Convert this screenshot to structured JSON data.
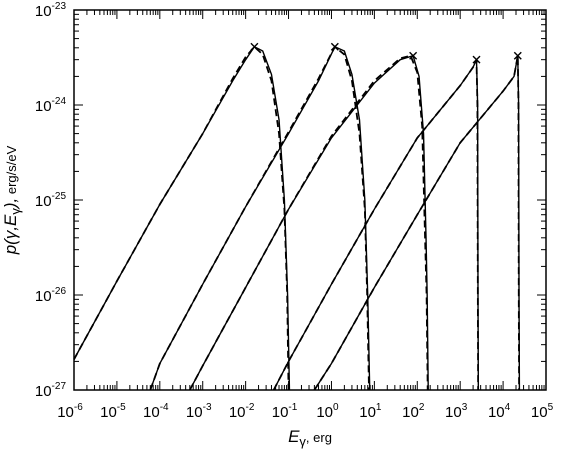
{
  "chart_data": {
    "type": "line",
    "x_scale": "log",
    "y_scale": "log",
    "xlim": [
      1e-06,
      100000.0
    ],
    "ylim": [
      1e-27,
      1e-23
    ],
    "grid": false,
    "legend": "none",
    "xlabel": {
      "symbol": "E",
      "subscript": "γ",
      "unit": ", erg"
    },
    "ylabel": {
      "prefix": "p(γ,",
      "symbol": "E",
      "subscript": "γ",
      "suffix": "),",
      "unit": " erg/s/eV"
    },
    "x_ticks": [
      {
        "base": "10",
        "exp": "-6",
        "value": 1e-06
      },
      {
        "base": "10",
        "exp": "-5",
        "value": 1e-05
      },
      {
        "base": "10",
        "exp": "-4",
        "value": 0.0001
      },
      {
        "base": "10",
        "exp": "-3",
        "value": 0.001
      },
      {
        "base": "10",
        "exp": "-2",
        "value": 0.01
      },
      {
        "base": "10",
        "exp": "-1",
        "value": 0.1
      },
      {
        "base": "10",
        "exp": "0",
        "value": 1
      },
      {
        "base": "10",
        "exp": "1",
        "value": 10
      },
      {
        "base": "10",
        "exp": "2",
        "value": 100
      },
      {
        "base": "10",
        "exp": "3",
        "value": 1000
      },
      {
        "base": "10",
        "exp": "4",
        "value": 10000
      },
      {
        "base": "10",
        "exp": "5",
        "value": 100000
      }
    ],
    "y_ticks": [
      {
        "base": "10",
        "exp": "-27",
        "value": 1e-27
      },
      {
        "base": "10",
        "exp": "-26",
        "value": 1e-26
      },
      {
        "base": "10",
        "exp": "-25",
        "value": 1e-25
      },
      {
        "base": "10",
        "exp": "-24",
        "value": 1e-24
      },
      {
        "base": "10",
        "exp": "-23",
        "value": 1e-23
      }
    ],
    "series": [
      {
        "solid": [
          [
            1e-06,
            2.1e-27
          ],
          [
            1e-05,
            1.4e-26
          ],
          [
            0.0001,
            9e-26
          ],
          [
            0.001,
            5e-25
          ],
          [
            0.005,
            1.8e-24
          ],
          [
            0.01,
            3e-24
          ],
          [
            0.016,
            4.1e-24
          ],
          [
            0.025,
            3.7e-24
          ],
          [
            0.04,
            2.1e-24
          ],
          [
            0.06,
            7e-25
          ],
          [
            0.08,
            1e-25
          ],
          [
            0.095,
            1e-26
          ],
          [
            0.105,
            1e-27
          ]
        ],
        "dashed": [
          [
            1e-06,
            2.1e-27
          ],
          [
            1e-05,
            1.4e-26
          ],
          [
            0.0001,
            9e-26
          ],
          [
            0.001,
            5e-25
          ],
          [
            0.005,
            1.9e-24
          ],
          [
            0.01,
            3.2e-24
          ],
          [
            0.016,
            4.1e-24
          ],
          [
            0.025,
            3.4e-24
          ],
          [
            0.04,
            1.8e-24
          ],
          [
            0.06,
            5e-25
          ],
          [
            0.08,
            8e-26
          ],
          [
            0.093,
            1e-26
          ],
          [
            0.1,
            1e-27
          ]
        ],
        "marker": [
          0.016,
          4.1e-24
        ]
      },
      {
        "solid": [
          [
            6e-05,
            1e-27
          ],
          [
            0.0001,
            1.9e-27
          ],
          [
            0.001,
            1.3e-26
          ],
          [
            0.01,
            8.5e-26
          ],
          [
            0.1,
            5e-25
          ],
          [
            0.5,
            1.8e-24
          ],
          [
            1.2,
            4.1e-24
          ],
          [
            2,
            3.7e-24
          ],
          [
            3,
            2.1e-24
          ],
          [
            4.5,
            7e-25
          ],
          [
            6,
            1e-25
          ],
          [
            7,
            1e-26
          ],
          [
            7.8,
            1e-27
          ]
        ],
        "dashed": [
          [
            6e-05,
            1e-27
          ],
          [
            0.0001,
            1.9e-27
          ],
          [
            0.001,
            1.3e-26
          ],
          [
            0.01,
            8.5e-26
          ],
          [
            0.1,
            5.2e-25
          ],
          [
            0.5,
            1.9e-24
          ],
          [
            1.2,
            4.1e-24
          ],
          [
            2,
            3.4e-24
          ],
          [
            3,
            1.8e-24
          ],
          [
            4.5,
            5e-25
          ],
          [
            6,
            8e-26
          ],
          [
            6.8,
            1e-26
          ],
          [
            7.5,
            1e-27
          ]
        ],
        "marker": [
          1.2,
          4.1e-24
        ]
      },
      {
        "solid": [
          [
            0.0005,
            1e-27
          ],
          [
            0.001,
            1.8e-27
          ],
          [
            0.01,
            1.2e-26
          ],
          [
            0.1,
            8e-26
          ],
          [
            1,
            4.5e-25
          ],
          [
            10,
            1.7e-24
          ],
          [
            40,
            3e-24
          ],
          [
            80,
            3.3e-24
          ],
          [
            110,
            2e-24
          ],
          [
            140,
            5e-25
          ],
          [
            160,
            4e-26
          ],
          [
            170,
            1e-26
          ],
          [
            180,
            1e-27
          ]
        ],
        "dashed": [
          [
            0.0005,
            1e-27
          ],
          [
            0.001,
            1.8e-27
          ],
          [
            0.01,
            1.2e-26
          ],
          [
            0.1,
            8e-26
          ],
          [
            1,
            4.7e-25
          ],
          [
            10,
            1.8e-24
          ],
          [
            40,
            3.1e-24
          ],
          [
            70,
            3.3e-24
          ],
          [
            100,
            2.2e-24
          ],
          [
            130,
            6e-25
          ],
          [
            150,
            5e-26
          ],
          [
            165,
            1e-26
          ],
          [
            175,
            1e-27
          ]
        ],
        "marker": [
          80,
          3.3e-24
        ]
      },
      {
        "solid": [
          [
            0.045,
            1e-27
          ],
          [
            0.1,
            2e-27
          ],
          [
            1,
            1.3e-26
          ],
          [
            10,
            8e-26
          ],
          [
            100,
            4.5e-25
          ],
          [
            1000,
            1.6e-24
          ],
          [
            2000,
            2.5e-24
          ],
          [
            2400,
            3e-24
          ],
          [
            2550,
            1e-24
          ],
          [
            2600,
            1e-26
          ],
          [
            2650,
            1e-27
          ]
        ],
        "dashed": [
          [
            0.045,
            1e-27
          ],
          [
            0.1,
            2e-27
          ],
          [
            1,
            1.3e-26
          ],
          [
            10,
            8e-26
          ],
          [
            100,
            4.5e-25
          ],
          [
            1000,
            1.6e-24
          ],
          [
            2000,
            2.5e-24
          ],
          [
            2400,
            3e-24
          ],
          [
            2520,
            1e-24
          ],
          [
            2580,
            1e-26
          ],
          [
            2620,
            1e-27
          ]
        ],
        "marker": [
          2400,
          3e-24
        ]
      },
      {
        "solid": [
          [
            0.4,
            1e-27
          ],
          [
            1,
            1.9e-27
          ],
          [
            10,
            1.2e-26
          ],
          [
            100,
            7e-26
          ],
          [
            1000,
            4e-25
          ],
          [
            10000.0,
            1.4e-24
          ],
          [
            18000.0,
            2e-24
          ],
          [
            22000.0,
            3.3e-24
          ],
          [
            23000.0,
            1e-24
          ],
          [
            23500.0,
            1e-26
          ],
          [
            24000.0,
            1e-27
          ]
        ],
        "dashed": [
          [
            0.4,
            1e-27
          ],
          [
            1,
            1.9e-27
          ],
          [
            10,
            1.2e-26
          ],
          [
            100,
            7e-26
          ],
          [
            1000,
            4e-25
          ],
          [
            10000.0,
            1.4e-24
          ],
          [
            18000.0,
            2e-24
          ],
          [
            22000.0,
            3.3e-24
          ],
          [
            22800.0,
            1e-24
          ],
          [
            23200.0,
            1e-26
          ],
          [
            23600.0,
            1e-27
          ]
        ],
        "marker": [
          22000.0,
          3.3e-24
        ]
      }
    ]
  }
}
